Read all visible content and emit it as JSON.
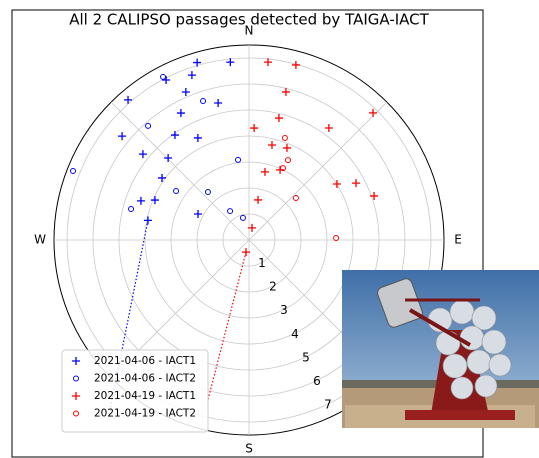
{
  "chart_data": {
    "type": "polar_scatter",
    "title": "All 2 CALIPSO passages detected by TAIGA-IACT",
    "rlim": [
      0,
      7.5
    ],
    "rticks": [
      1,
      2,
      3,
      4,
      5,
      6,
      7
    ],
    "theta_grid": [
      0,
      45,
      90,
      135,
      180,
      225,
      270,
      315
    ],
    "theta_labels": [
      {
        "value": 0,
        "label": "N"
      },
      {
        "value": 90,
        "label": "E"
      },
      {
        "value": 180,
        "label": "S"
      },
      {
        "value": 270,
        "label": "W"
      }
    ],
    "grid": true,
    "legend": "lower left",
    "series": [
      {
        "name": "2021-04-06 - IACT1",
        "color": "#0000ff",
        "marker": "plus",
        "theta": [
          281,
          293,
          305.5,
          315.4,
          324.8,
          331.8,
          336.9,
          340.9,
          343.7,
          354,
          319.2,
          309.3,
          309,
          333.4,
          347.3,
          289.9,
          297,
          332.6
        ],
        "r": [
          3.96,
          3.93,
          4.11,
          4.43,
          4.94,
          5.54,
          6.19,
          6.71,
          7.11,
          6.88,
          7.12,
          6.31,
          5.25,
          4.39,
          5.4,
          4.42,
          2.2,
          6.93
        ]
      },
      {
        "name": "2021-04-06 - IACT2",
        "color": "#0000ff",
        "marker": "circle",
        "theta": [
          291.4,
          318.5,
          341.7,
          352.2,
          303.9,
          319.5,
          284.7,
          326.8,
          344.7,
          332.2
        ],
        "r": [
          7.27,
          5.86,
          5.63,
          3.11,
          3.38,
          2.43,
          4.69,
          1.33,
          0.88,
          7.09
        ]
      },
      {
        "name": "2021-04-19 - IACT1",
        "color": "#ff0000",
        "marker": "plus",
        "theta": [
          194,
          14,
          12.7,
          13.2,
          13.6,
          13.8,
          14,
          15,
          6.1,
          2.6,
          35.5,
          44.3,
          57.5,
          62,
          70.6,
          22.4,
          23.9
        ],
        "r": [
          0.48,
          0.48,
          1.58,
          2.69,
          3.76,
          4.83,
          5.87,
          6.97,
          6.88,
          4.31,
          5.29,
          6.83,
          4.01,
          4.66,
          5.1,
          3.83,
          2.95
        ]
      },
      {
        "name": "2021-04-19 - IACT2",
        "color": "#ff0000",
        "marker": "circle",
        "theta": [
          19.4,
          48.2,
          88.7,
          26,
          25.3
        ],
        "r": [
          4.16,
          2.42,
          3.35,
          3.42,
          3.06
        ]
      }
    ],
    "tracks": [
      {
        "color": "#0000ff",
        "theta": [
          281,
          218.1
        ],
        "r": [
          3.96,
          8.79
        ]
      },
      {
        "color": "#ff0000",
        "theta": [
          194,
          194.4
        ],
        "r": [
          0.48,
          6.35
        ]
      }
    ]
  }
}
